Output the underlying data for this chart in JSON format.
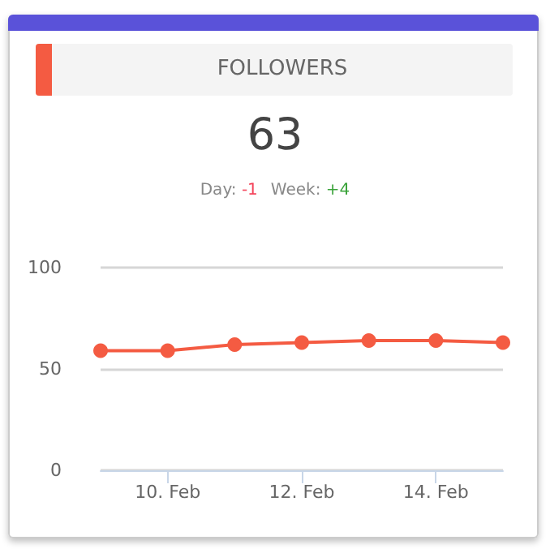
{
  "chart_data": {
    "type": "line",
    "title": "FOLLOWERS",
    "subtitle": "63",
    "annotations": [
      "Day: -1",
      "Week: +4"
    ],
    "x": [
      "--02-09",
      "--02-10",
      "--02-11",
      "--02-12",
      "--02-13",
      "--02-14",
      "--02-15"
    ],
    "series": [
      {
        "color": "#f45b42",
        "values": [
          59,
          59,
          62,
          63,
          64,
          64,
          63
        ]
      }
    ],
    "xlim": [
      "--02-09",
      "--02-15"
    ],
    "xticks": [
      {
        "value": "--02-10",
        "label": "10. Feb"
      },
      {
        "value": "--02-12",
        "label": "12. Feb"
      },
      {
        "value": "--02-14",
        "label": "14. Feb"
      }
    ],
    "ylim": [
      0,
      100
    ],
    "yticks": [
      0,
      50,
      100
    ],
    "grid": "y",
    "marker": "circle",
    "line_style": "solid"
  }
}
